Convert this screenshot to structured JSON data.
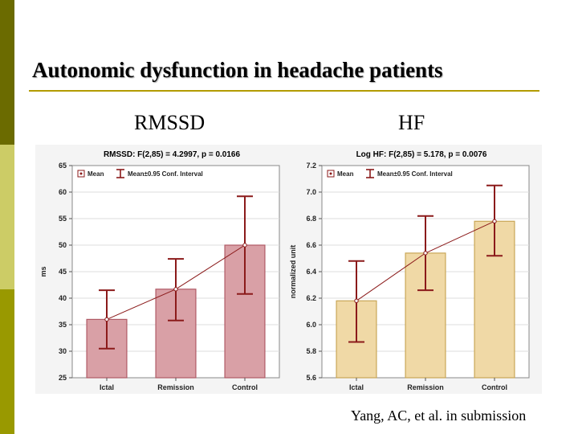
{
  "slide": {
    "title": "Autonomic dysfunction in headache patients",
    "left_heading": "RMSSD",
    "right_heading": "HF",
    "caption": "Yang, AC, et al. in submission"
  },
  "colors": {
    "sidebar": [
      "#6b6b00",
      "#cccc66",
      "#999900"
    ],
    "rule": "#b39b00",
    "error_bar": "#8b1a1a",
    "left_bar_fill": "#d9a0a6",
    "left_bar_stroke": "#b05a66",
    "right_bar_fill": "#f0d9a6",
    "right_bar_stroke": "#c9a657"
  },
  "chart_data": [
    {
      "type": "bar",
      "title": "RMSSD:  F(2,85) = 4.2997, p = 0.0166",
      "ylabel": "ms",
      "xlabel": "",
      "categories": [
        "Ictal",
        "Remission",
        "Control"
      ],
      "values": [
        36.0,
        41.7,
        50.0
      ],
      "ci_low": [
        30.5,
        35.8,
        40.8
      ],
      "ci_high": [
        41.5,
        47.4,
        59.2
      ],
      "ylim": [
        25,
        65
      ],
      "yticks": [
        "25",
        "30",
        "35",
        "40",
        "45",
        "50",
        "55",
        "60",
        "65"
      ],
      "legend": [
        "Mean",
        "Mean±0.95 Conf. Interval"
      ],
      "legend_position": "top-left",
      "grid": true
    },
    {
      "type": "bar",
      "title": "Log HF:  F(2,85) = 5.178, p = 0.0076",
      "ylabel": "normalized unit",
      "xlabel": "",
      "categories": [
        "Ictal",
        "Remission",
        "Control"
      ],
      "values": [
        6.18,
        6.54,
        6.78
      ],
      "ci_low": [
        5.87,
        6.26,
        6.52
      ],
      "ci_high": [
        6.48,
        6.82,
        7.05
      ],
      "ylim": [
        5.6,
        7.2
      ],
      "yticks": [
        "5.6",
        "5.8",
        "6.0",
        "6.2",
        "6.4",
        "6.6",
        "6.8",
        "7.0",
        "7.2"
      ],
      "legend": [
        "Mean",
        "Mean±0.95 Conf. Interval"
      ],
      "legend_position": "top-left",
      "grid": true
    }
  ]
}
